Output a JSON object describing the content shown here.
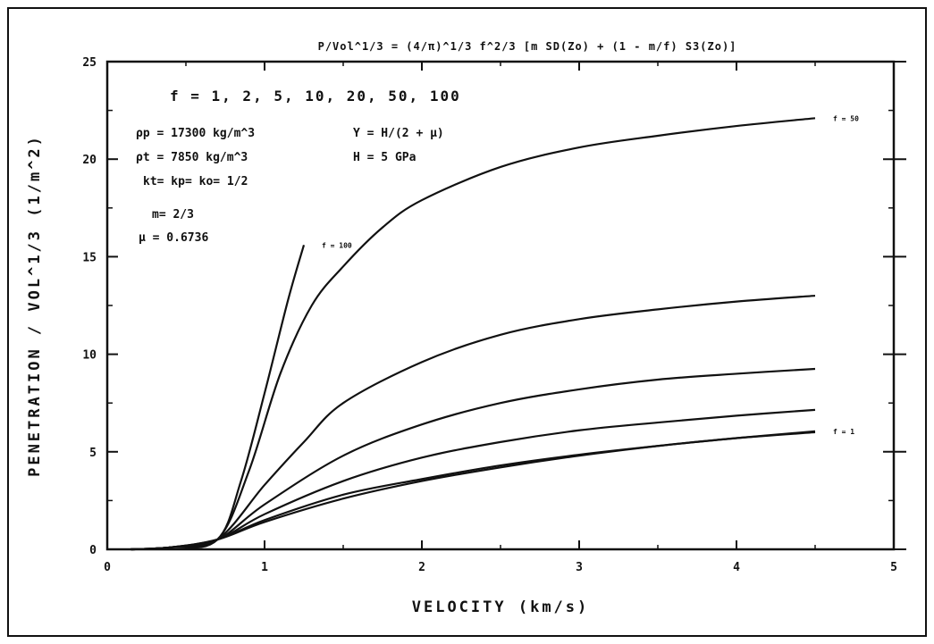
{
  "chart_data": {
    "type": "line",
    "title": "P/Vol^1/3 = (4/π)^1/3 f^2/3 [m SD(Zo) + (1 - m/f) S3(Zo)]",
    "xlabel": "VELOCITY   (km/s)",
    "ylabel": "PENETRATION / VOL^1/3   (1/m^2)",
    "xlim": [
      0,
      5
    ],
    "ylim": [
      0,
      25
    ],
    "x_ticks": [
      0,
      1,
      2,
      3,
      4,
      5
    ],
    "y_ticks": [
      0,
      5,
      10,
      15,
      20,
      25
    ],
    "x_tick_labels": [
      "0",
      "1",
      "2",
      "3",
      "4",
      "5"
    ],
    "y_tick_labels": [
      "0",
      "5",
      "10",
      "15",
      "20",
      "25"
    ],
    "grid": false,
    "annotations": {
      "f_values": "f = 1, 2, 5, 10, 20, 50, 100",
      "rho_p": "ρp = 17300 kg/m^3",
      "Y": "Y = H/(2 + μ)",
      "rho_t": "ρt = 7850 kg/m^3",
      "H": "H = 5 GPa",
      "k": "kt= kp= ko= 1/2",
      "m": "m= 2/3",
      "mu": "μ = 0.6736"
    },
    "series": [
      {
        "name": "f = 1",
        "label": "f = 1",
        "points": [
          [
            0.15,
            0
          ],
          [
            0.4,
            0.1
          ],
          [
            0.7,
            0.5
          ],
          [
            1.0,
            1.4
          ],
          [
            1.5,
            2.6
          ],
          [
            2.0,
            3.5
          ],
          [
            2.5,
            4.2
          ],
          [
            3.0,
            4.8
          ],
          [
            3.5,
            5.3
          ],
          [
            4.0,
            5.7
          ],
          [
            4.5,
            6.05
          ]
        ]
      },
      {
        "name": "f = 2",
        "label": "",
        "points": [
          [
            0.15,
            0
          ],
          [
            0.4,
            0.1
          ],
          [
            0.7,
            0.5
          ],
          [
            1.0,
            1.5
          ],
          [
            1.5,
            2.8
          ],
          [
            2.0,
            3.6
          ],
          [
            2.5,
            4.3
          ],
          [
            3.0,
            4.85
          ],
          [
            3.5,
            5.3
          ],
          [
            4.0,
            5.7
          ],
          [
            4.5,
            6.0
          ]
        ]
      },
      {
        "name": "f = 5",
        "label": "",
        "points": [
          [
            0.15,
            0
          ],
          [
            0.4,
            0.1
          ],
          [
            0.7,
            0.5
          ],
          [
            1.0,
            1.8
          ],
          [
            1.5,
            3.5
          ],
          [
            2.0,
            4.7
          ],
          [
            2.5,
            5.5
          ],
          [
            3.0,
            6.1
          ],
          [
            3.5,
            6.5
          ],
          [
            4.0,
            6.85
          ],
          [
            4.5,
            7.15
          ]
        ]
      },
      {
        "name": "f = 10",
        "label": "",
        "points": [
          [
            0.15,
            0
          ],
          [
            0.4,
            0.1
          ],
          [
            0.7,
            0.5
          ],
          [
            1.0,
            2.3
          ],
          [
            1.5,
            4.8
          ],
          [
            2.0,
            6.4
          ],
          [
            2.5,
            7.5
          ],
          [
            3.0,
            8.2
          ],
          [
            3.5,
            8.7
          ],
          [
            4.0,
            9.0
          ],
          [
            4.5,
            9.25
          ]
        ]
      },
      {
        "name": "f = 20",
        "label": "",
        "points": [
          [
            0.15,
            0
          ],
          [
            0.4,
            0.1
          ],
          [
            0.7,
            0.5
          ],
          [
            1.0,
            3.3
          ],
          [
            1.25,
            5.5
          ],
          [
            1.5,
            7.5
          ],
          [
            2.0,
            9.6
          ],
          [
            2.5,
            11.0
          ],
          [
            3.0,
            11.8
          ],
          [
            3.5,
            12.3
          ],
          [
            4.0,
            12.7
          ],
          [
            4.5,
            13.0
          ]
        ]
      },
      {
        "name": "f = 50",
        "label": "f = 50",
        "points": [
          [
            0.15,
            0
          ],
          [
            0.4,
            0.1
          ],
          [
            0.7,
            0.5
          ],
          [
            0.9,
            4.0
          ],
          [
            1.1,
            9.0
          ],
          [
            1.3,
            12.5
          ],
          [
            1.5,
            14.5
          ],
          [
            1.75,
            16.5
          ],
          [
            2.0,
            17.9
          ],
          [
            2.5,
            19.6
          ],
          [
            3.0,
            20.6
          ],
          [
            3.5,
            21.2
          ],
          [
            4.0,
            21.7
          ],
          [
            4.5,
            22.1
          ]
        ]
      },
      {
        "name": "f = 100",
        "label": "f = 100",
        "points": [
          [
            0.15,
            0
          ],
          [
            0.4,
            0.1
          ],
          [
            0.7,
            0.5
          ],
          [
            0.85,
            3.5
          ],
          [
            1.0,
            8.0
          ],
          [
            1.15,
            12.8
          ],
          [
            1.25,
            15.6
          ]
        ]
      }
    ]
  },
  "page": {
    "background": "#ffffff",
    "ink": "#111111"
  }
}
